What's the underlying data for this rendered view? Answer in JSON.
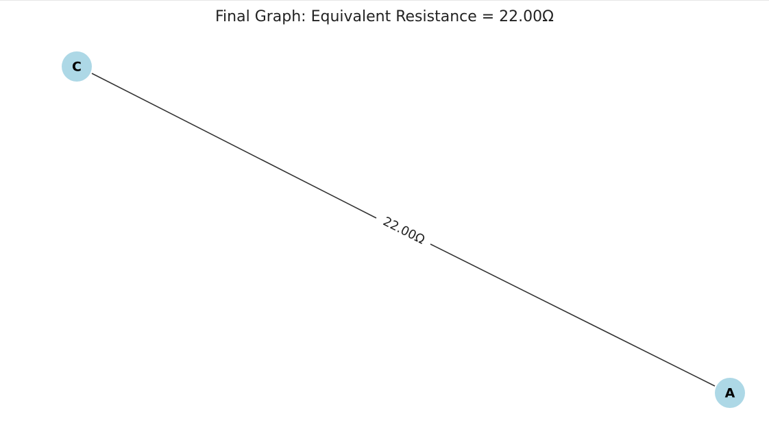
{
  "title": "Final Graph: Equivalent Resistance = 22.00Ω",
  "colors": {
    "node_fill": "#add8e6",
    "edge_stroke": "#333333",
    "label_text": "#000000"
  },
  "nodes": [
    {
      "id": "C",
      "label": "C"
    },
    {
      "id": "A",
      "label": "A"
    }
  ],
  "edges": [
    {
      "from": "C",
      "to": "A",
      "label": "22.00Ω"
    }
  ]
}
